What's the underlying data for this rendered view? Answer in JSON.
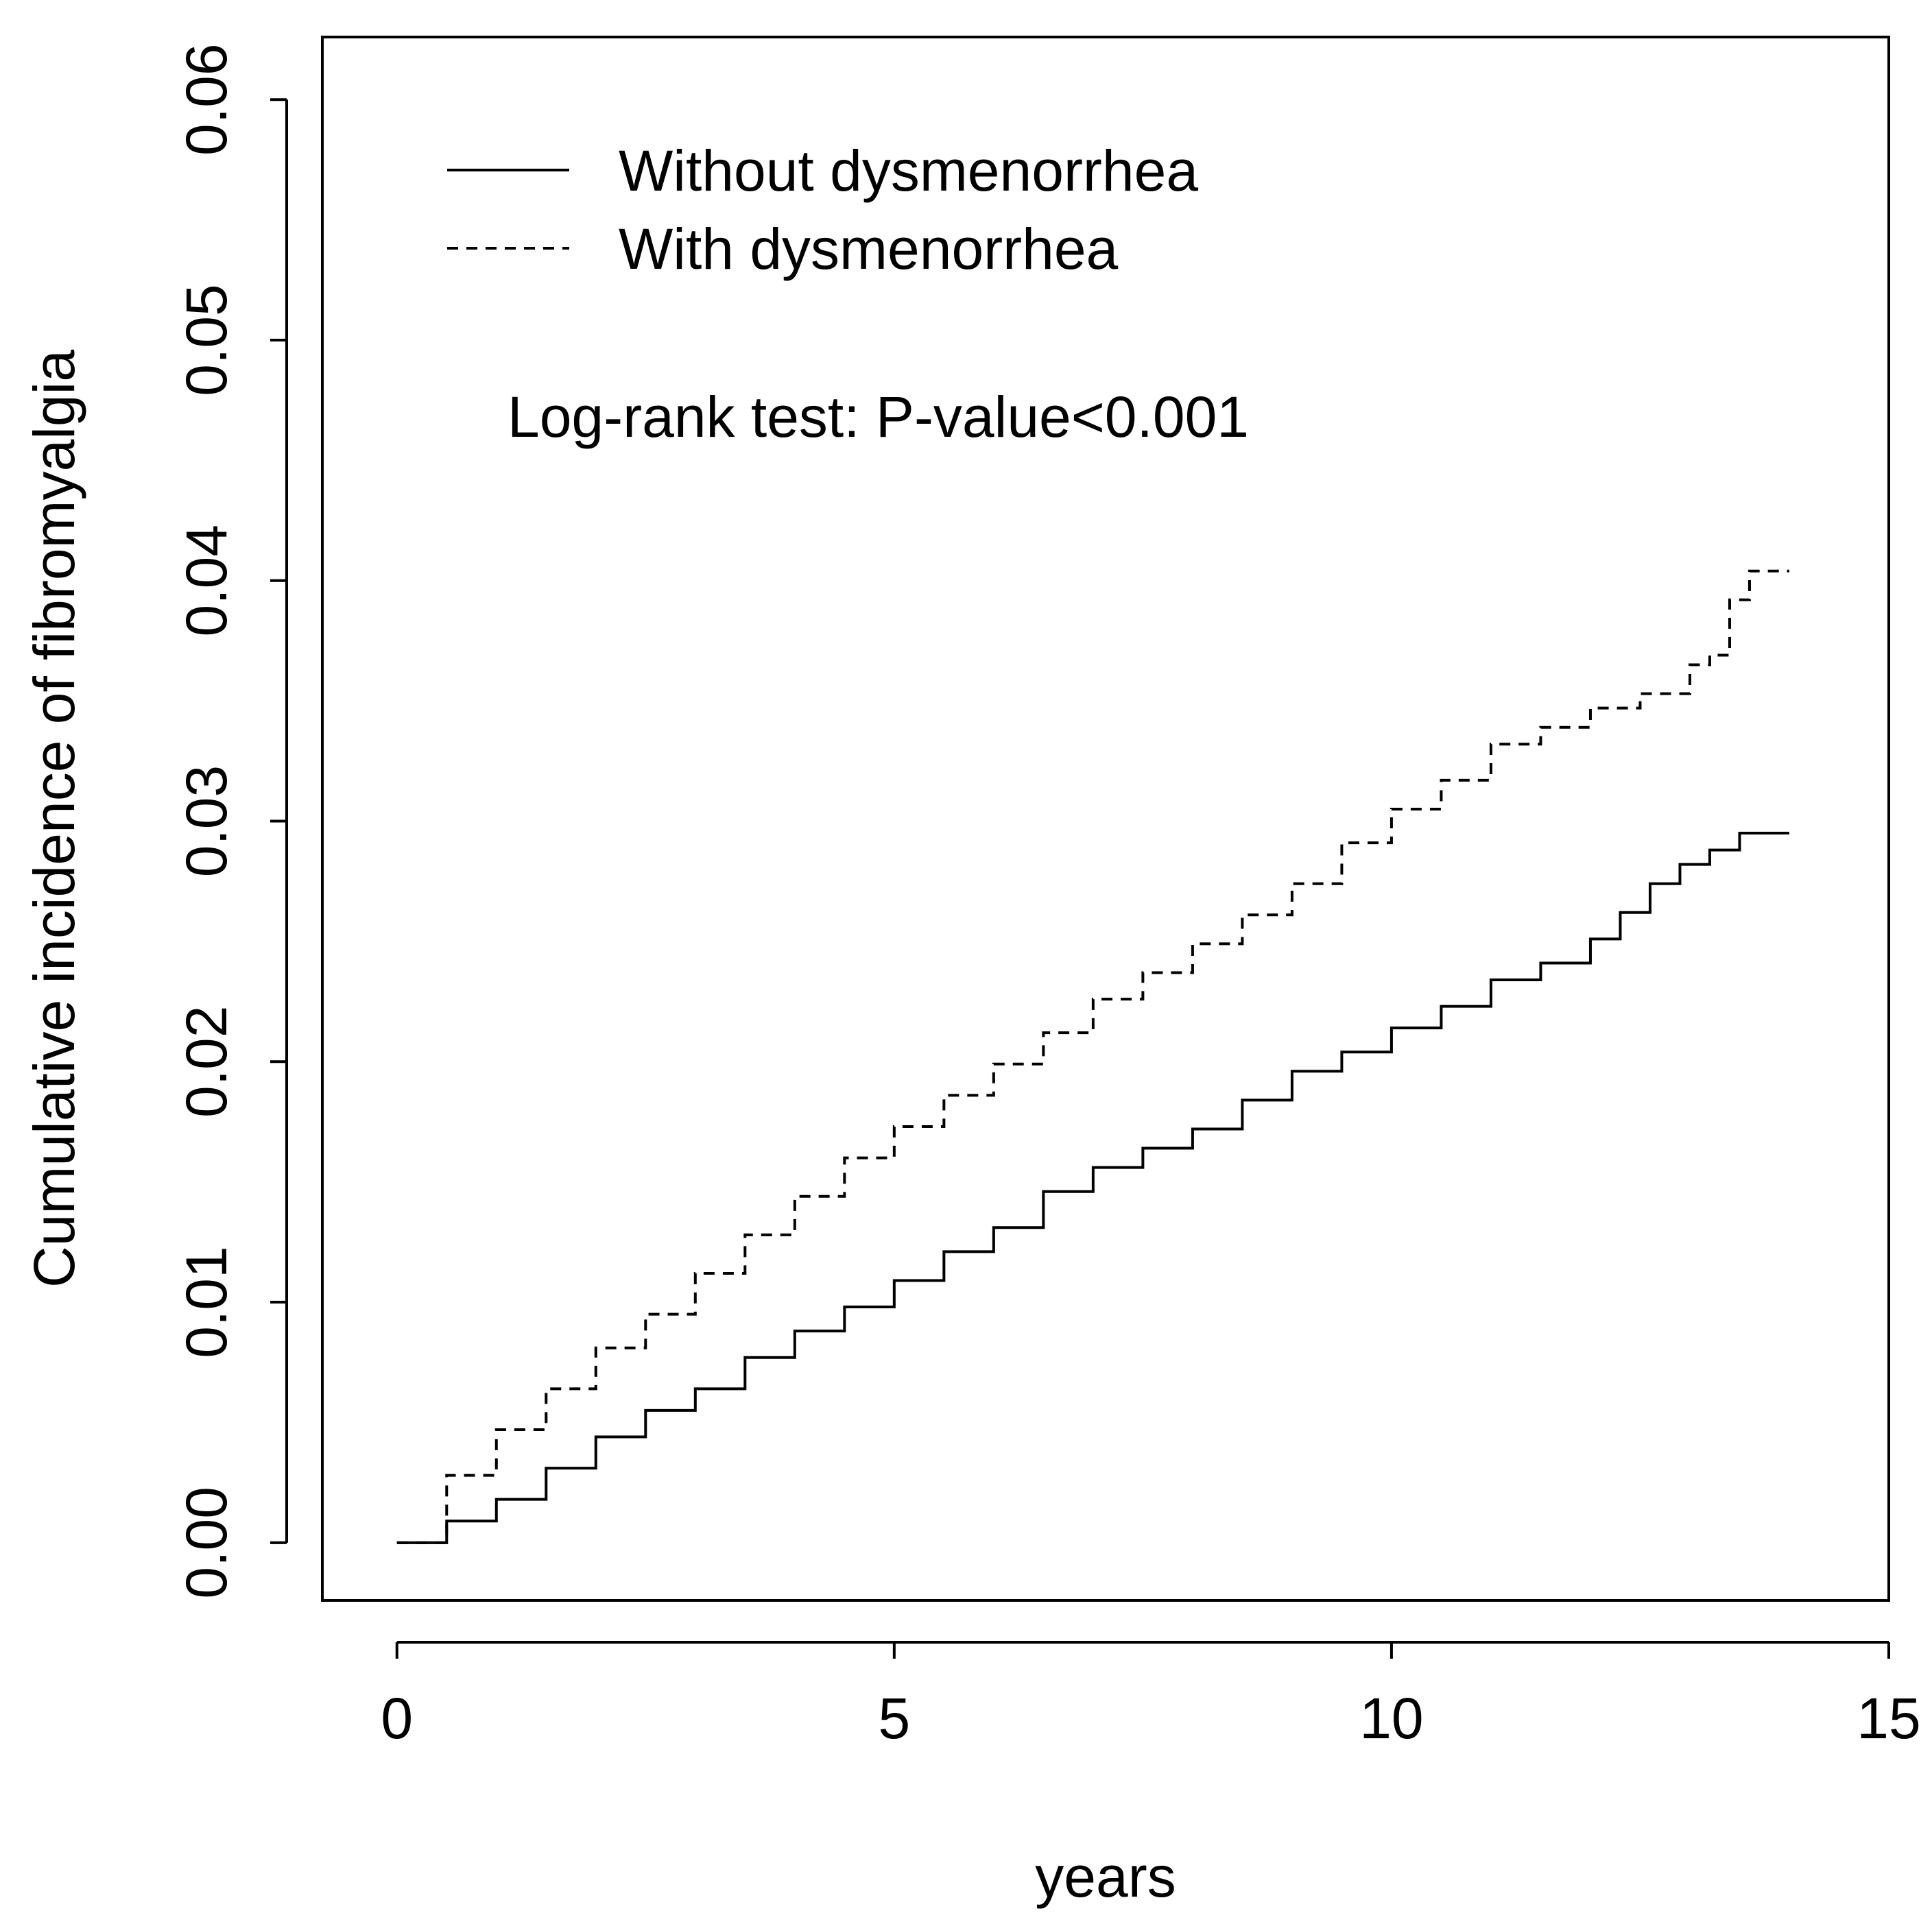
{
  "chart_data": {
    "type": "line",
    "title": "",
    "xlabel": "years",
    "ylabel": "Cumulative incidence of fibromyalgia",
    "xlim": [
      -0.75,
      15
    ],
    "ylim": [
      -0.0024,
      0.0626
    ],
    "x_ticks": [
      "0",
      "5",
      "10",
      "15"
    ],
    "y_ticks": [
      "0.00",
      "0.01",
      "0.02",
      "0.03",
      "0.04",
      "0.05",
      "0.06"
    ],
    "grid": false,
    "legend_position": "top-left",
    "annotation": "Log-rank test: P-value<0.001",
    "series": [
      {
        "name": "Without dysmenorrhea",
        "line_style": "solid",
        "x": [
          0,
          0.5,
          1.0,
          1.5,
          2.0,
          2.5,
          3.0,
          3.5,
          4.0,
          4.5,
          5.0,
          5.5,
          6.0,
          6.5,
          7.0,
          7.5,
          8.0,
          8.5,
          9.0,
          9.5,
          10.0,
          10.5,
          11.0,
          11.5,
          12.0,
          12.3,
          12.6,
          12.9,
          13.2,
          13.5,
          14.0
        ],
        "y": [
          0,
          0.0009,
          0.0018,
          0.0031,
          0.0044,
          0.0055,
          0.0064,
          0.0077,
          0.0088,
          0.0098,
          0.0109,
          0.0121,
          0.0131,
          0.0146,
          0.0156,
          0.0164,
          0.0172,
          0.0184,
          0.0196,
          0.0204,
          0.0214,
          0.0223,
          0.0234,
          0.0241,
          0.0251,
          0.0262,
          0.0274,
          0.0282,
          0.0288,
          0.0295,
          0.0295
        ]
      },
      {
        "name": "With dysmenorrhea",
        "line_style": "dashed",
        "x": [
          0,
          0.5,
          1.0,
          1.5,
          2.0,
          2.5,
          3.0,
          3.5,
          4.0,
          4.5,
          5.0,
          5.5,
          6.0,
          6.5,
          7.0,
          7.5,
          8.0,
          8.5,
          9.0,
          9.5,
          10.0,
          10.5,
          11.0,
          11.5,
          12.0,
          12.5,
          13.0,
          13.2,
          13.4,
          13.6,
          14.0
        ],
        "y": [
          0,
          0.0028,
          0.0047,
          0.0064,
          0.0081,
          0.0095,
          0.0112,
          0.0128,
          0.0144,
          0.016,
          0.0173,
          0.0186,
          0.0199,
          0.0212,
          0.0226,
          0.0237,
          0.0249,
          0.0261,
          0.0274,
          0.0291,
          0.0305,
          0.0317,
          0.0332,
          0.0339,
          0.0347,
          0.0353,
          0.0365,
          0.0369,
          0.0392,
          0.0404,
          0.0404
        ]
      }
    ]
  }
}
